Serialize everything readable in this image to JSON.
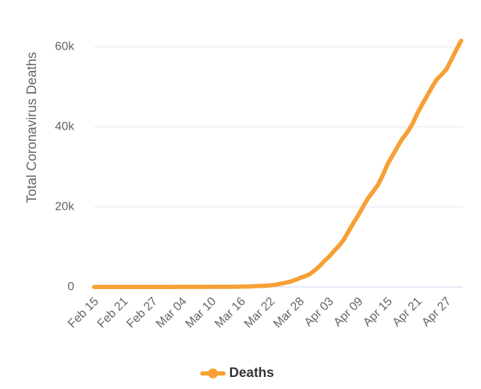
{
  "chart_data": {
    "type": "line",
    "y_axis_label": "Total Coronavirus Deaths",
    "categories": [
      "Feb 15",
      null,
      null,
      null,
      null,
      null,
      "Feb 21",
      null,
      null,
      null,
      null,
      null,
      "Feb 27",
      null,
      null,
      null,
      null,
      null,
      "Mar 04",
      null,
      null,
      null,
      null,
      null,
      "Mar 10",
      null,
      null,
      null,
      null,
      null,
      "Mar 16",
      null,
      null,
      null,
      null,
      null,
      "Mar 22",
      null,
      null,
      null,
      null,
      null,
      "Mar 28",
      null,
      null,
      null,
      null,
      null,
      "Apr 03",
      null,
      null,
      null,
      null,
      null,
      "Apr 09",
      null,
      null,
      null,
      null,
      null,
      "Apr 15",
      null,
      null,
      null,
      null,
      null,
      "Apr 21",
      null,
      null,
      null,
      null,
      null,
      "Apr 27",
      null,
      null,
      null
    ],
    "series": [
      {
        "name": "Deaths",
        "color": "#f7a035",
        "values": [
          0,
          0,
          0,
          0,
          0,
          0,
          0,
          0,
          0,
          0,
          0,
          0,
          0,
          0,
          1,
          1,
          6,
          9,
          11,
          12,
          15,
          19,
          22,
          26,
          31,
          38,
          42,
          50,
          58,
          69,
          89,
          109,
          150,
          207,
          256,
          302,
          414,
          555,
          780,
          1027,
          1295,
          1695,
          2220,
          2631,
          3157,
          4055,
          5118,
          6422,
          7564,
          8959,
          10256,
          11776,
          13917,
          16042,
          17990,
          20168,
          22187,
          23822,
          25526,
          27963,
          30773,
          32882,
          35017,
          37080,
          38664,
          40616,
          43236,
          45536,
          47681,
          49821,
          51843,
          53030,
          54399,
          56797,
          59255,
          61500
        ]
      }
    ],
    "ylim": [
      0,
      60000
    ],
    "yticks": [
      0,
      {
        "value": 20000,
        "label": "20k"
      },
      {
        "value": 40000,
        "label": "40k"
      },
      {
        "value": 60000,
        "label": "60k"
      }
    ],
    "grid": true,
    "legend": "bottom"
  }
}
